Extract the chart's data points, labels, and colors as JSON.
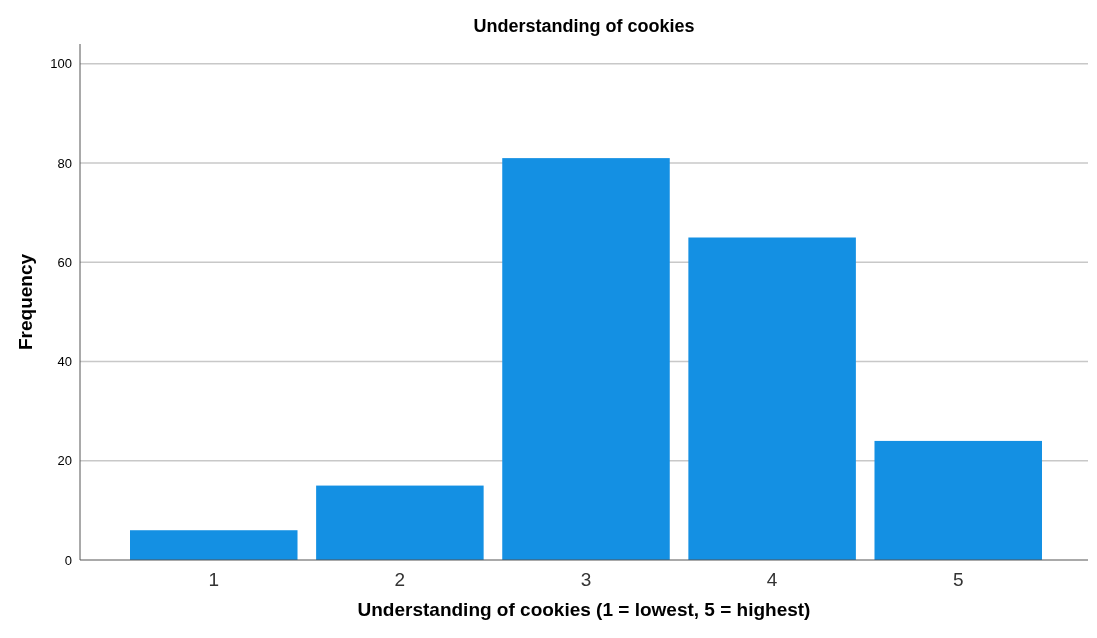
{
  "chart_data": {
    "type": "bar",
    "title": "Understanding of cookies",
    "xlabel": "Understanding of cookies (1 = lowest, 5 = highest)",
    "ylabel": "Frequency",
    "categories": [
      "1",
      "2",
      "3",
      "4",
      "5"
    ],
    "values": [
      6,
      15,
      81,
      65,
      24
    ],
    "color": "#1490e3",
    "ylim": [
      0,
      104
    ],
    "yticks": [
      0,
      20,
      40,
      60,
      80,
      100
    ],
    "grid": "y"
  }
}
